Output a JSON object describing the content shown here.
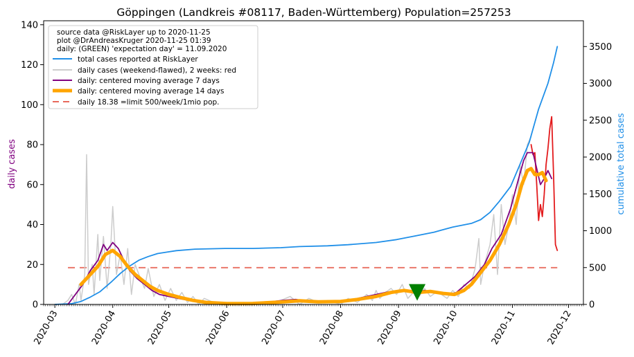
{
  "chart_data": {
    "type": "line",
    "title": "Göppingen (Landkreis #08117, Baden-Württemberg) Population=257253",
    "ylabel_left": "daily cases",
    "ylabel_right": "cumulative total cases",
    "ylim_left": [
      0,
      142
    ],
    "ylim_right": [
      0,
      3850
    ],
    "xlim": [
      "2020-02-24",
      "2020-12-09"
    ],
    "left_ticks": [
      0,
      20,
      40,
      60,
      80,
      100,
      120,
      140
    ],
    "right_ticks": [
      0,
      500,
      1000,
      1500,
      2000,
      2500,
      3000,
      3500
    ],
    "x_ticks": [
      "2020-03",
      "2020-04",
      "2020-05",
      "2020-06",
      "2020-07",
      "2020-08",
      "2020-09",
      "2020-10",
      "2020-11",
      "2020-12"
    ],
    "x_tick_dates": [
      "2020-03-01",
      "2020-04-01",
      "2020-05-01",
      "2020-06-01",
      "2020-07-01",
      "2020-08-01",
      "2020-09-01",
      "2020-10-01",
      "2020-11-01",
      "2020-12-01"
    ],
    "info_lines": [
      "source data @RiskLayer up to 2020-11-25",
      "plot @DrAndreasKruger 2020-11-25 01:39",
      "daily: (GREEN) 'expectation day' = 11.09.2020"
    ],
    "legend": [
      {
        "label": "total cases reported at RiskLayer",
        "color": "#1f8fe8",
        "style": "line"
      },
      {
        "label": "daily cases (weekend-flawed), 2 weeks: red",
        "color": "#cccccc",
        "style": "line"
      },
      {
        "label": "daily: centered moving average 7 days",
        "color": "#800080",
        "style": "line"
      },
      {
        "label": "daily: centered moving average 14 days",
        "color": "#ffa500",
        "style": "thick"
      },
      {
        "label": "daily 18.38 =limit 500/week/1mio pop.",
        "color": "#e8685a",
        "style": "dashed"
      }
    ],
    "limit_line": {
      "value": 18.38,
      "from": "2020-03-08",
      "to": "2020-11-25"
    },
    "expectation_day": {
      "date": "2020-09-11",
      "value": 6
    },
    "series": [
      {
        "name": "total cases reported at RiskLayer",
        "axis": "right",
        "color": "#1f8fe8",
        "points": [
          [
            "2020-03-01",
            0
          ],
          [
            "2020-03-10",
            10
          ],
          [
            "2020-03-15",
            40
          ],
          [
            "2020-03-20",
            100
          ],
          [
            "2020-03-25",
            170
          ],
          [
            "2020-03-31",
            300
          ],
          [
            "2020-04-05",
            420
          ],
          [
            "2020-04-10",
            520
          ],
          [
            "2020-04-15",
            600
          ],
          [
            "2020-04-20",
            650
          ],
          [
            "2020-04-25",
            690
          ],
          [
            "2020-04-30",
            710
          ],
          [
            "2020-05-05",
            730
          ],
          [
            "2020-05-15",
            750
          ],
          [
            "2020-05-31",
            760
          ],
          [
            "2020-06-15",
            760
          ],
          [
            "2020-06-30",
            770
          ],
          [
            "2020-07-10",
            785
          ],
          [
            "2020-07-25",
            795
          ],
          [
            "2020-08-05",
            810
          ],
          [
            "2020-08-20",
            840
          ],
          [
            "2020-08-31",
            880
          ],
          [
            "2020-09-10",
            930
          ],
          [
            "2020-09-20",
            980
          ],
          [
            "2020-09-30",
            1050
          ],
          [
            "2020-10-10",
            1100
          ],
          [
            "2020-10-15",
            1150
          ],
          [
            "2020-10-20",
            1250
          ],
          [
            "2020-10-25",
            1400
          ],
          [
            "2020-10-31",
            1600
          ],
          [
            "2020-11-05",
            1900
          ],
          [
            "2020-11-10",
            2200
          ],
          [
            "2020-11-15",
            2650
          ],
          [
            "2020-11-20",
            3000
          ],
          [
            "2020-11-23",
            3280
          ],
          [
            "2020-11-25",
            3500
          ]
        ]
      },
      {
        "name": "daily cases (weekend-flawed), 2 weeks: red",
        "axis": "left",
        "color": "#cccccc",
        "points": [
          [
            "2020-03-05",
            0
          ],
          [
            "2020-03-08",
            2
          ],
          [
            "2020-03-10",
            5
          ],
          [
            "2020-03-12",
            0
          ],
          [
            "2020-03-14",
            10
          ],
          [
            "2020-03-15",
            2
          ],
          [
            "2020-03-17",
            15
          ],
          [
            "2020-03-18",
            75
          ],
          [
            "2020-03-19",
            10
          ],
          [
            "2020-03-21",
            20
          ],
          [
            "2020-03-22",
            5
          ],
          [
            "2020-03-24",
            35
          ],
          [
            "2020-03-25",
            12
          ],
          [
            "2020-03-27",
            34
          ],
          [
            "2020-03-29",
            8
          ],
          [
            "2020-03-31",
            30
          ],
          [
            "2020-04-01",
            49
          ],
          [
            "2020-04-03",
            15
          ],
          [
            "2020-04-05",
            25
          ],
          [
            "2020-04-07",
            10
          ],
          [
            "2020-04-09",
            28
          ],
          [
            "2020-04-11",
            5
          ],
          [
            "2020-04-13",
            20
          ],
          [
            "2020-04-15",
            15
          ],
          [
            "2020-04-18",
            8
          ],
          [
            "2020-04-20",
            18
          ],
          [
            "2020-04-23",
            4
          ],
          [
            "2020-04-26",
            10
          ],
          [
            "2020-04-29",
            2
          ],
          [
            "2020-05-02",
            8
          ],
          [
            "2020-05-05",
            2
          ],
          [
            "2020-05-08",
            6
          ],
          [
            "2020-05-11",
            1
          ],
          [
            "2020-05-14",
            4
          ],
          [
            "2020-05-17",
            0
          ],
          [
            "2020-05-20",
            3
          ],
          [
            "2020-05-25",
            1
          ],
          [
            "2020-06-01",
            0
          ],
          [
            "2020-06-10",
            1
          ],
          [
            "2020-06-20",
            0
          ],
          [
            "2020-06-30",
            2
          ],
          [
            "2020-07-05",
            4
          ],
          [
            "2020-07-10",
            0
          ],
          [
            "2020-07-15",
            3
          ],
          [
            "2020-07-20",
            1
          ],
          [
            "2020-07-25",
            2
          ],
          [
            "2020-08-01",
            0
          ],
          [
            "2020-08-05",
            3
          ],
          [
            "2020-08-10",
            1
          ],
          [
            "2020-08-15",
            5
          ],
          [
            "2020-08-18",
            2
          ],
          [
            "2020-08-20",
            7
          ],
          [
            "2020-08-22",
            3
          ],
          [
            "2020-08-25",
            6
          ],
          [
            "2020-08-28",
            8
          ],
          [
            "2020-08-31",
            5
          ],
          [
            "2020-09-03",
            10
          ],
          [
            "2020-09-06",
            3
          ],
          [
            "2020-09-09",
            6
          ],
          [
            "2020-09-12",
            4
          ],
          [
            "2020-09-15",
            8
          ],
          [
            "2020-09-18",
            4
          ],
          [
            "2020-09-21",
            6
          ],
          [
            "2020-09-24",
            5
          ],
          [
            "2020-09-27",
            3
          ],
          [
            "2020-09-30",
            7
          ],
          [
            "2020-10-03",
            4
          ],
          [
            "2020-10-06",
            10
          ],
          [
            "2020-10-09",
            8
          ],
          [
            "2020-10-12",
            18
          ],
          [
            "2020-10-14",
            33
          ],
          [
            "2020-10-15",
            10
          ],
          [
            "2020-10-17",
            20
          ],
          [
            "2020-10-20",
            30
          ],
          [
            "2020-10-22",
            45
          ],
          [
            "2020-10-24",
            15
          ],
          [
            "2020-10-26",
            50
          ],
          [
            "2020-10-28",
            30
          ],
          [
            "2020-10-30",
            40
          ],
          [
            "2020-11-01",
            55
          ],
          [
            "2020-11-03",
            40
          ],
          [
            "2020-11-05",
            70
          ],
          [
            "2020-11-07",
            60
          ],
          [
            "2020-11-09",
            80
          ],
          [
            "2020-11-11",
            84
          ]
        ]
      },
      {
        "name": "daily cases, last 2 weeks",
        "axis": "left",
        "color": "#e31a1c",
        "points": [
          [
            "2020-11-11",
            80
          ],
          [
            "2020-11-12",
            75
          ],
          [
            "2020-11-13",
            76
          ],
          [
            "2020-11-14",
            60
          ],
          [
            "2020-11-15",
            42
          ],
          [
            "2020-11-16",
            50
          ],
          [
            "2020-11-17",
            44
          ],
          [
            "2020-11-18",
            55
          ],
          [
            "2020-11-19",
            70
          ],
          [
            "2020-11-20",
            78
          ],
          [
            "2020-11-21",
            88
          ],
          [
            "2020-11-22",
            94
          ],
          [
            "2020-11-23",
            65
          ],
          [
            "2020-11-24",
            30
          ],
          [
            "2020-11-25",
            27
          ]
        ]
      },
      {
        "name": "daily: centered moving average 7 days",
        "axis": "left",
        "color": "#800080",
        "points": [
          [
            "2020-03-08",
            0
          ],
          [
            "2020-03-12",
            5
          ],
          [
            "2020-03-16",
            10
          ],
          [
            "2020-03-20",
            17
          ],
          [
            "2020-03-24",
            22
          ],
          [
            "2020-03-27",
            30
          ],
          [
            "2020-03-29",
            27
          ],
          [
            "2020-04-01",
            31
          ],
          [
            "2020-04-04",
            28
          ],
          [
            "2020-04-07",
            22
          ],
          [
            "2020-04-10",
            17
          ],
          [
            "2020-04-14",
            13
          ],
          [
            "2020-04-18",
            10
          ],
          [
            "2020-04-22",
            7
          ],
          [
            "2020-04-26",
            5
          ],
          [
            "2020-05-01",
            4
          ],
          [
            "2020-05-06",
            3
          ],
          [
            "2020-05-12",
            2
          ],
          [
            "2020-05-18",
            1
          ],
          [
            "2020-05-25",
            0.5
          ],
          [
            "2020-06-01",
            0.3
          ],
          [
            "2020-06-15",
            0.3
          ],
          [
            "2020-07-01",
            2
          ],
          [
            "2020-07-08",
            2.5
          ],
          [
            "2020-07-15",
            1.5
          ],
          [
            "2020-07-25",
            1
          ],
          [
            "2020-08-05",
            2
          ],
          [
            "2020-08-15",
            4
          ],
          [
            "2020-08-25",
            6
          ],
          [
            "2020-09-01",
            7
          ],
          [
            "2020-09-08",
            6
          ],
          [
            "2020-09-15",
            7
          ],
          [
            "2020-09-20",
            6
          ],
          [
            "2020-09-28",
            5
          ],
          [
            "2020-10-02",
            6
          ],
          [
            "2020-10-07",
            10
          ],
          [
            "2020-10-12",
            14
          ],
          [
            "2020-10-17",
            20
          ],
          [
            "2020-10-21",
            28
          ],
          [
            "2020-10-26",
            35
          ],
          [
            "2020-10-31",
            48
          ],
          [
            "2020-11-04",
            62
          ],
          [
            "2020-11-07",
            72
          ],
          [
            "2020-11-09",
            76
          ],
          [
            "2020-11-12",
            76
          ],
          [
            "2020-11-14",
            68
          ],
          [
            "2020-11-16",
            60
          ],
          [
            "2020-11-18",
            63
          ],
          [
            "2020-11-20",
            67
          ],
          [
            "2020-11-22",
            63
          ]
        ]
      },
      {
        "name": "daily: centered moving average 14 days",
        "axis": "left",
        "color": "#ffa500",
        "points": [
          [
            "2020-03-15",
            10
          ],
          [
            "2020-03-20",
            15
          ],
          [
            "2020-03-24",
            19
          ],
          [
            "2020-03-28",
            25
          ],
          [
            "2020-04-01",
            27
          ],
          [
            "2020-04-05",
            24
          ],
          [
            "2020-04-09",
            19
          ],
          [
            "2020-04-13",
            15
          ],
          [
            "2020-04-17",
            12
          ],
          [
            "2020-04-21",
            9
          ],
          [
            "2020-04-25",
            7
          ],
          [
            "2020-05-01",
            5
          ],
          [
            "2020-05-07",
            3.5
          ],
          [
            "2020-05-14",
            2
          ],
          [
            "2020-05-21",
            1
          ],
          [
            "2020-06-01",
            0.4
          ],
          [
            "2020-06-15",
            0.5
          ],
          [
            "2020-06-30",
            1.2
          ],
          [
            "2020-07-10",
            1.8
          ],
          [
            "2020-07-20",
            1.3
          ],
          [
            "2020-08-01",
            1.5
          ],
          [
            "2020-08-10",
            2.5
          ],
          [
            "2020-08-20",
            4
          ],
          [
            "2020-08-28",
            6
          ],
          [
            "2020-09-04",
            7
          ],
          [
            "2020-09-11",
            6
          ],
          [
            "2020-09-18",
            6.5
          ],
          [
            "2020-09-25",
            5.5
          ],
          [
            "2020-10-01",
            5
          ],
          [
            "2020-10-06",
            7
          ],
          [
            "2020-10-10",
            10
          ],
          [
            "2020-10-15",
            16
          ],
          [
            "2020-10-20",
            22
          ],
          [
            "2020-10-25",
            30
          ],
          [
            "2020-10-30",
            40
          ],
          [
            "2020-11-03",
            50
          ],
          [
            "2020-11-06",
            60
          ],
          [
            "2020-11-09",
            67
          ],
          [
            "2020-11-11",
            68
          ],
          [
            "2020-11-13",
            65
          ],
          [
            "2020-11-15",
            65
          ],
          [
            "2020-11-17",
            66
          ],
          [
            "2020-11-19",
            62
          ]
        ]
      }
    ]
  }
}
